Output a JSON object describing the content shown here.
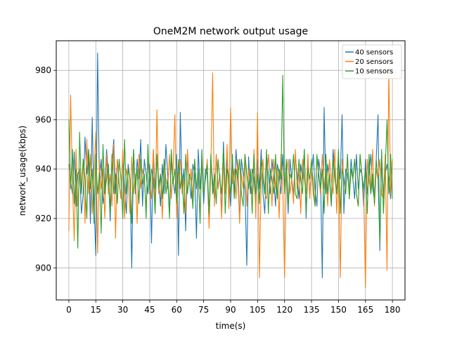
{
  "chart_data": {
    "type": "line",
    "title": "OneM2M network output usage",
    "xlabel": "time(s)",
    "ylabel": "network_usage(kbps)",
    "xlim": [
      -7,
      187
    ],
    "ylim": [
      887,
      992
    ],
    "xticks": [
      0,
      15,
      30,
      45,
      60,
      75,
      90,
      105,
      120,
      135,
      150,
      165,
      180
    ],
    "yticks": [
      900,
      920,
      940,
      960,
      980
    ],
    "grid": true,
    "legend_position": "top-right",
    "x": [
      0,
      1,
      2,
      3,
      4,
      5,
      6,
      7,
      8,
      9,
      10,
      11,
      12,
      13,
      14,
      15,
      16,
      17,
      18,
      19,
      20,
      21,
      22,
      23,
      24,
      25,
      26,
      27,
      28,
      29,
      30,
      31,
      32,
      33,
      34,
      35,
      36,
      37,
      38,
      39,
      40,
      41,
      42,
      43,
      44,
      45,
      46,
      47,
      48,
      49,
      50,
      51,
      52,
      53,
      54,
      55,
      56,
      57,
      58,
      59,
      60,
      61,
      62,
      63,
      64,
      65,
      66,
      67,
      68,
      69,
      70,
      71,
      72,
      73,
      74,
      75,
      76,
      77,
      78,
      79,
      80,
      81,
      82,
      83,
      84,
      85,
      86,
      87,
      88,
      89,
      90,
      91,
      92,
      93,
      94,
      95,
      96,
      97,
      98,
      99,
      100,
      101,
      102,
      103,
      104,
      105,
      106,
      107,
      108,
      109,
      110,
      111,
      112,
      113,
      114,
      115,
      116,
      117,
      118,
      119,
      120,
      121,
      122,
      123,
      124,
      125,
      126,
      127,
      128,
      129,
      130,
      131,
      132,
      133,
      134,
      135,
      136,
      137,
      138,
      139,
      140,
      141,
      142,
      143,
      144,
      145,
      146,
      147,
      148,
      149,
      150,
      151,
      152,
      153,
      154,
      155,
      156,
      157,
      158,
      159,
      160,
      161,
      162,
      163,
      164,
      165,
      166,
      167,
      168,
      169,
      170,
      171,
      172,
      173,
      174,
      175,
      176,
      177,
      178,
      179,
      180
    ],
    "series": [
      {
        "name": "40 sensors",
        "color": "#1f77b4",
        "values": [
          942,
          935,
          930,
          947,
          925,
          938,
          940,
          922,
          930,
          953,
          938,
          948,
          918,
          961,
          926,
          905,
          987,
          935,
          944,
          926,
          932,
          948,
          938,
          919,
          942,
          952,
          930,
          944,
          935,
          928,
          945,
          933,
          922,
          942,
          936,
          900,
          948,
          930,
          944,
          936,
          952,
          925,
          944,
          938,
          930,
          942,
          910,
          948,
          932,
          944,
          936,
          925,
          942,
          930,
          950,
          938,
          922,
          944,
          935,
          930,
          946,
          905,
          963,
          932,
          940,
          915,
          945,
          936,
          928,
          942,
          938,
          912,
          948,
          932,
          944,
          926,
          940,
          938,
          918,
          944,
          935,
          928,
          946,
          932,
          938,
          922,
          951,
          930,
          944,
          936,
          925,
          942,
          930,
          948,
          936,
          920,
          944,
          938,
          932,
          901,
          945,
          930,
          940,
          936,
          925,
          944,
          932,
          948,
          930,
          922,
          946,
          938,
          930,
          944,
          936,
          925,
          942,
          938,
          930,
          946,
          932,
          940,
          922,
          944,
          936,
          930,
          945,
          938,
          928,
          942,
          936,
          948,
          920,
          944,
          930,
          938,
          946,
          932,
          925,
          944,
          938,
          896,
          965,
          930,
          942,
          936,
          925,
          948,
          938,
          930,
          944,
          936,
          962,
          922,
          940,
          938,
          930,
          944,
          936,
          928,
          946,
          932,
          940,
          938,
          925,
          944,
          930,
          938,
          946,
          932,
          928,
          944,
          962,
          907,
          945,
          930,
          938,
          942,
          936,
          928,
          944
        ]
      },
      {
        "name": "20 sensors",
        "color": "#ff7f0e",
        "values": [
          915,
          970,
          935,
          911,
          948,
          925,
          940,
          932,
          944,
          918,
          952,
          930,
          946,
          922,
          938,
          955,
          906,
          944,
          932,
          940,
          920,
          946,
          930,
          938,
          925,
          950,
          912,
          944,
          934,
          928,
          948,
          920,
          940,
          936,
          922,
          945,
          930,
          938,
          918,
          946,
          932,
          940,
          936,
          924,
          944,
          934,
          928,
          948,
          922,
          964,
          930,
          938,
          920,
          944,
          936,
          932,
          946,
          928,
          940,
          962,
          920,
          938,
          944,
          930,
          936,
          922,
          948,
          934,
          940,
          928,
          944,
          932,
          938,
          920,
          946,
          930,
          936,
          944,
          916,
          940,
          979,
          925,
          946,
          932,
          938,
          920,
          944,
          930,
          950,
          924,
          965,
          934,
          940,
          928,
          944,
          918,
          938,
          932,
          946,
          925,
          940,
          936,
          930,
          948,
          920,
          963,
          896,
          936,
          944,
          930,
          928,
          946,
          938,
          925,
          944,
          932,
          940,
          920,
          946,
          934,
          896,
          938,
          944,
          930,
          936,
          926,
          948,
          932,
          940,
          922,
          944,
          936,
          930,
          946,
          928,
          940,
          936,
          925,
          944,
          938,
          930,
          946,
          932,
          940,
          925,
          944,
          936,
          930,
          948,
          922,
          940,
          896,
          944,
          936,
          930,
          946,
          928,
          940,
          936,
          944,
          930,
          925,
          946,
          938,
          932,
          892,
          944,
          936,
          930,
          948,
          925,
          940,
          936,
          944,
          930,
          928,
          946,
          899,
          980,
          930,
          944
        ]
      },
      {
        "name": "10 sensors",
        "color": "#2ca02c",
        "values": [
          960,
          932,
          948,
          926,
          940,
          908,
          955,
          930,
          944,
          936,
          920,
          948,
          932,
          940,
          918,
          946,
          930,
          938,
          914,
          950,
          930,
          936,
          942,
          922,
          946,
          930,
          938,
          926,
          944,
          936,
          920,
          952,
          930,
          940,
          936,
          918,
          948,
          932,
          940,
          926,
          944,
          934,
          938,
          920,
          950,
          930,
          940,
          936,
          922,
          946,
          932,
          938,
          928,
          944,
          930,
          936,
          920,
          948,
          934,
          940,
          926,
          944,
          932,
          938,
          922,
          946,
          930,
          938,
          936,
          924,
          944,
          932,
          940,
          918,
          948,
          930,
          936,
          942,
          922,
          946,
          930,
          938,
          926,
          944,
          936,
          930,
          948,
          922,
          940,
          936,
          930,
          946,
          928,
          940,
          936,
          944,
          930,
          925,
          946,
          938,
          932,
          940,
          922,
          946,
          930,
          938,
          926,
          944,
          936,
          930,
          948,
          922,
          940,
          936,
          930,
          946,
          928,
          940,
          936,
          978,
          930,
          944,
          925,
          938,
          936,
          946,
          930,
          928,
          944,
          936,
          930,
          948,
          922,
          940,
          936,
          944,
          930,
          925,
          946,
          938,
          932,
          940,
          922,
          946,
          930,
          938,
          926,
          944,
          936,
          930,
          948,
          922,
          940,
          936,
          930,
          946,
          928,
          940,
          936,
          944,
          930,
          925,
          946,
          938,
          932,
          940,
          922,
          946,
          930,
          938,
          926,
          944,
          936,
          910,
          948,
          922,
          940,
          960,
          930,
          946,
          928
        ]
      }
    ]
  }
}
